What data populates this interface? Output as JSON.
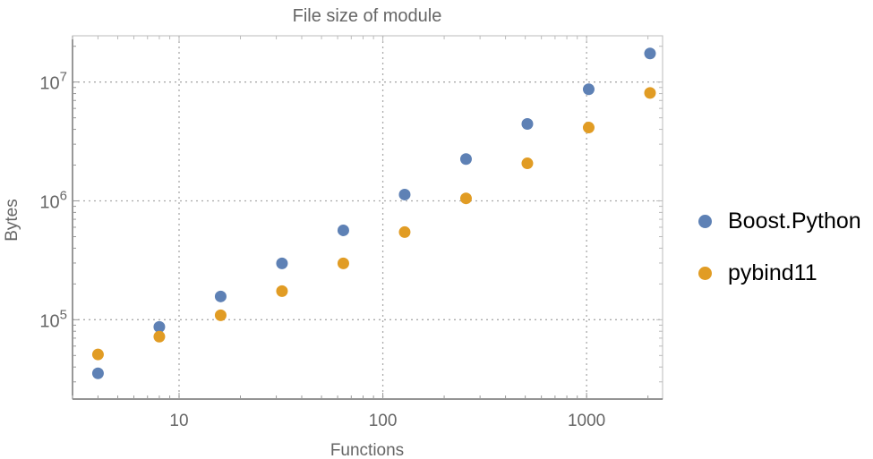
{
  "chart_data": {
    "type": "scatter",
    "title": "File size of module",
    "xlabel": "Functions",
    "ylabel": "Bytes",
    "xscale": "log",
    "yscale": "log",
    "xlim": [
      3,
      2360
    ],
    "ylim": [
      21500,
      24500000
    ],
    "xticks": [
      {
        "value": 10,
        "label": "10"
      },
      {
        "value": 100,
        "label": "100"
      },
      {
        "value": 1000,
        "label": "1000"
      }
    ],
    "yticks": [
      {
        "value": 100000,
        "base": "10",
        "exp": "5"
      },
      {
        "value": 1000000,
        "base": "10",
        "exp": "6"
      },
      {
        "value": 10000000,
        "base": "10",
        "exp": "7"
      }
    ],
    "grid": "dotted at major ticks",
    "legend": "right",
    "x": [
      4,
      8,
      16,
      32,
      64,
      128,
      256,
      512,
      1024,
      2048
    ],
    "series": [
      {
        "name": "Boost.Python",
        "color": "#5E81B5",
        "values": [
          35400,
          87000,
          157000,
          298000,
          565000,
          1130000,
          2250000,
          4440000,
          8700000,
          17400000
        ]
      },
      {
        "name": "pybind11",
        "color": "#E19C24",
        "values": [
          51000,
          72000,
          109000,
          174000,
          298000,
          546000,
          1050000,
          2070000,
          4140000,
          8100000
        ]
      }
    ]
  }
}
